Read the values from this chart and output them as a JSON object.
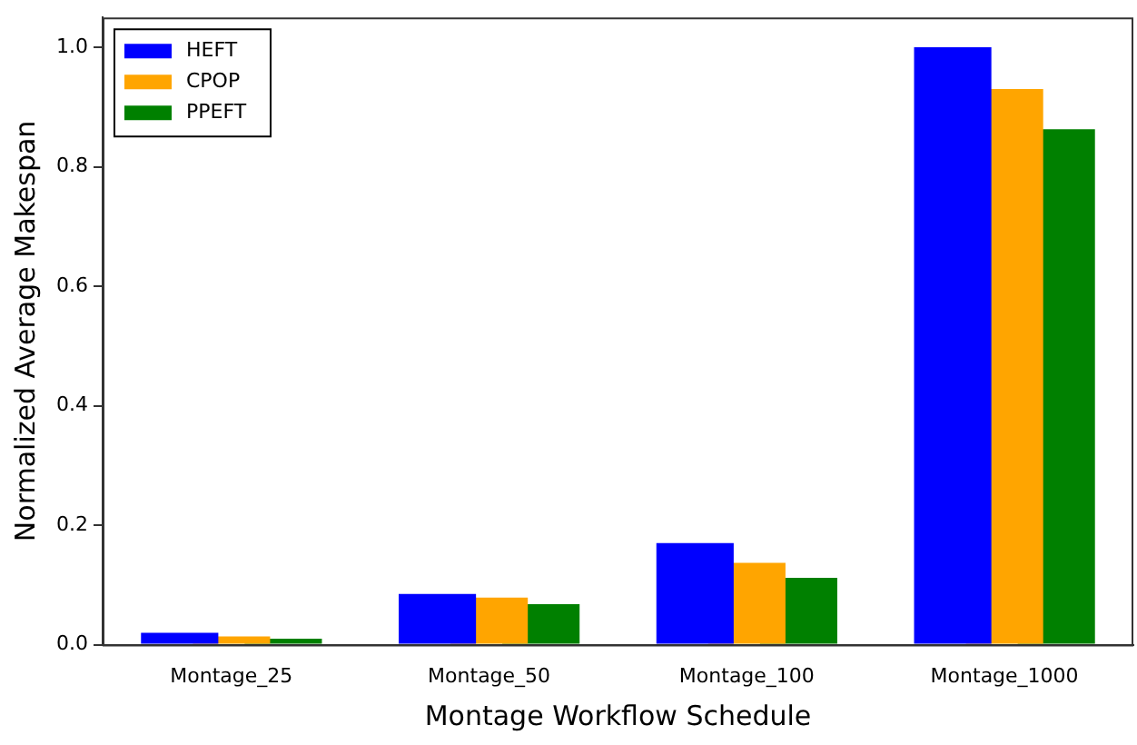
{
  "chart_data": {
    "type": "bar",
    "xlabel": "Montage Workflow Schedule",
    "ylabel": "Normalized Average Makespan",
    "categories": [
      "Montage_25",
      "Montage_50",
      "Montage_100",
      "Montage_1000"
    ],
    "series": [
      {
        "name": "HEFT",
        "color": "#0000ff",
        "values": [
          0.02,
          0.085,
          0.17,
          1.0
        ]
      },
      {
        "name": "CPOP",
        "color": "#ffa500",
        "values": [
          0.014,
          0.079,
          0.137,
          0.93
        ]
      },
      {
        "name": "PPEFT",
        "color": "#008000",
        "values": [
          0.01,
          0.068,
          0.112,
          0.863
        ]
      }
    ],
    "ylim": [
      0,
      1.05
    ],
    "yticks": [
      {
        "value": 0,
        "label": "0.0"
      },
      {
        "value": 0.2,
        "label": "0.2"
      },
      {
        "value": 0.4,
        "label": "0.4"
      },
      {
        "value": 0.6,
        "label": "0.6"
      },
      {
        "value": 0.8,
        "label": "0.8"
      },
      {
        "value": 1.0,
        "label": "1.0"
      }
    ],
    "grid": false,
    "legend": "top left"
  }
}
